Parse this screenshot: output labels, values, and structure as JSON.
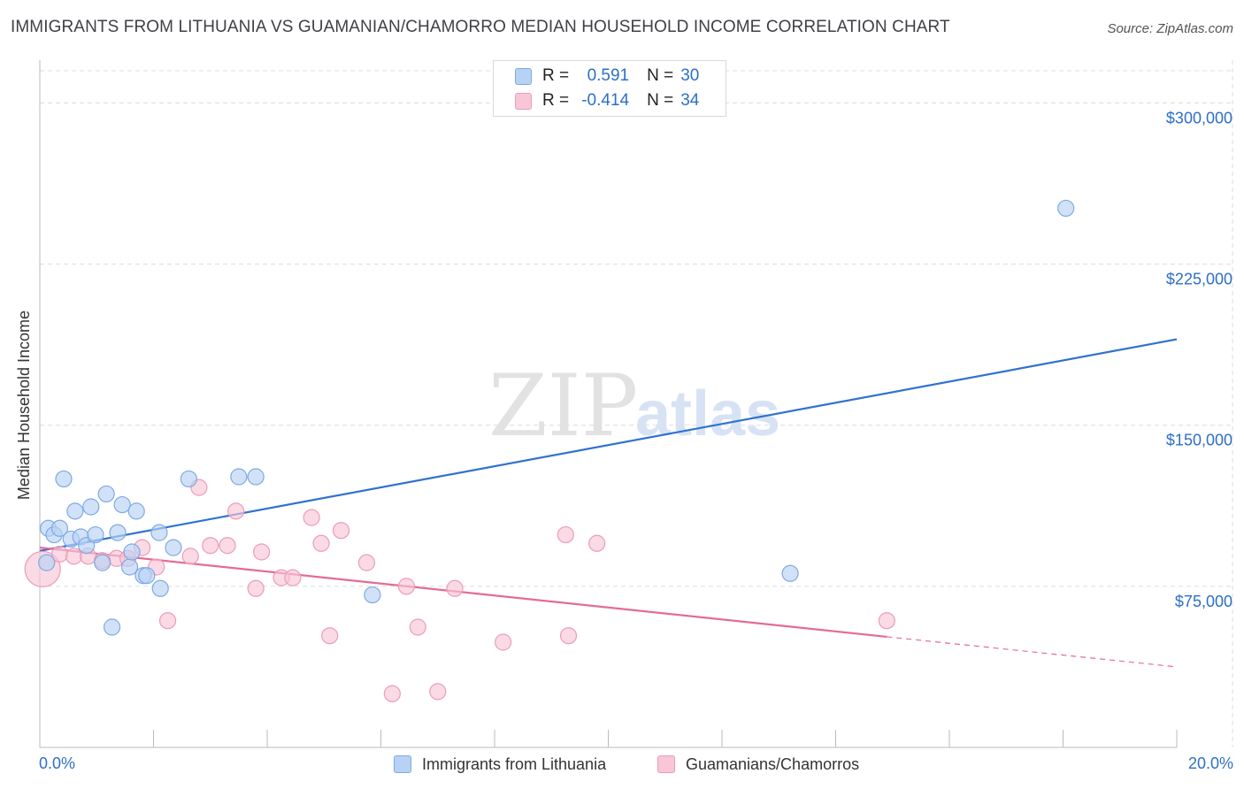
{
  "title": "IMMIGRANTS FROM LITHUANIA VS GUAMANIAN/CHAMORRO MEDIAN HOUSEHOLD INCOME CORRELATION CHART",
  "source": "Source: ZipAtlas.com",
  "watermark": {
    "zip": "ZIP",
    "atlas": "atlas"
  },
  "legend": {
    "row1": {
      "r_label": "R =",
      "r_value": "0.591",
      "n_label": "N =",
      "n_value": "30"
    },
    "row2": {
      "r_label": "R =",
      "r_value": "-0.414",
      "n_label": "N =",
      "n_value": "34"
    }
  },
  "bottom_legend": {
    "series1": "Immigrants from Lithuania",
    "series2": "Guamanians/Chamorros"
  },
  "x_labels": {
    "left": "0.0%",
    "right": "20.0%"
  },
  "colors": {
    "blue": "#2f72d0",
    "blue_fill": "#b8d2f5",
    "blue_stroke": "#7ea9e4",
    "pink": "#e56a98",
    "pink_fill": "#f8c6d6",
    "pink_stroke": "#ec9cb8",
    "grid": "#dcdcdc",
    "tick_text": "#2d6fc6"
  },
  "chart_data": {
    "type": "scatter",
    "xlabel": "",
    "ylabel": "Median Household Income",
    "xlim": [
      0,
      20
    ],
    "ylim": [
      0,
      315000
    ],
    "x_unit": "%",
    "y_ticks": [
      {
        "value": 75000,
        "label": "$75,000"
      },
      {
        "value": 150000,
        "label": "$150,000"
      },
      {
        "value": 225000,
        "label": "$225,000"
      },
      {
        "value": 300000,
        "label": "$300,000"
      }
    ],
    "grid": true,
    "legend_position": "top-center",
    "series": [
      {
        "name": "Immigrants from Lithuania",
        "color": "#2f72d0",
        "points": [
          [
            0.12,
            86000
          ],
          [
            0.15,
            102000
          ],
          [
            0.25,
            99000
          ],
          [
            0.35,
            102000
          ],
          [
            0.42,
            125000
          ],
          [
            0.55,
            97000
          ],
          [
            0.62,
            110000
          ],
          [
            0.72,
            98000
          ],
          [
            0.82,
            94000
          ],
          [
            0.9,
            112000
          ],
          [
            0.98,
            99000
          ],
          [
            1.1,
            86000
          ],
          [
            1.17,
            118000
          ],
          [
            1.27,
            56000
          ],
          [
            1.37,
            100000
          ],
          [
            1.45,
            113000
          ],
          [
            1.58,
            84000
          ],
          [
            1.62,
            91000
          ],
          [
            1.7,
            110000
          ],
          [
            1.82,
            80000
          ],
          [
            1.88,
            80000
          ],
          [
            2.12,
            74000
          ],
          [
            2.1,
            100000
          ],
          [
            2.35,
            93000
          ],
          [
            2.62,
            125000
          ],
          [
            3.5,
            126000
          ],
          [
            3.8,
            126000
          ],
          [
            5.85,
            71000
          ],
          [
            13.2,
            81000
          ],
          [
            18.05,
            251000
          ]
        ],
        "trend": {
          "x": [
            0,
            20
          ],
          "y": [
            91500,
            190000
          ]
        }
      },
      {
        "name": "Guamanians/Chamorros",
        "color": "#e56a98",
        "points": [
          [
            0.05,
            83000
          ],
          [
            0.35,
            90000
          ],
          [
            0.6,
            89000
          ],
          [
            0.85,
            89000
          ],
          [
            1.1,
            87000
          ],
          [
            1.35,
            88000
          ],
          [
            1.55,
            88000
          ],
          [
            1.8,
            93000
          ],
          [
            2.05,
            84000
          ],
          [
            2.25,
            59000
          ],
          [
            2.65,
            89000
          ],
          [
            2.8,
            121000
          ],
          [
            3.0,
            94000
          ],
          [
            3.3,
            94000
          ],
          [
            3.45,
            110000
          ],
          [
            3.8,
            74000
          ],
          [
            3.9,
            91000
          ],
          [
            4.25,
            79000
          ],
          [
            4.45,
            79000
          ],
          [
            4.78,
            107000
          ],
          [
            4.95,
            95000
          ],
          [
            5.1,
            52000
          ],
          [
            5.3,
            101000
          ],
          [
            5.75,
            86000
          ],
          [
            6.2,
            25000
          ],
          [
            6.45,
            75000
          ],
          [
            6.65,
            56000
          ],
          [
            7.0,
            26000
          ],
          [
            7.3,
            74000
          ],
          [
            8.15,
            49000
          ],
          [
            9.25,
            99000
          ],
          [
            9.3,
            52000
          ],
          [
            9.8,
            95000
          ],
          [
            14.9,
            59000
          ]
        ],
        "trend": {
          "x": [
            0,
            14.9
          ],
          "y": [
            93000,
            51500
          ]
        },
        "trend_dashed": {
          "x": [
            14.9,
            20
          ],
          "y": [
            51500,
            37500
          ]
        }
      }
    ]
  }
}
